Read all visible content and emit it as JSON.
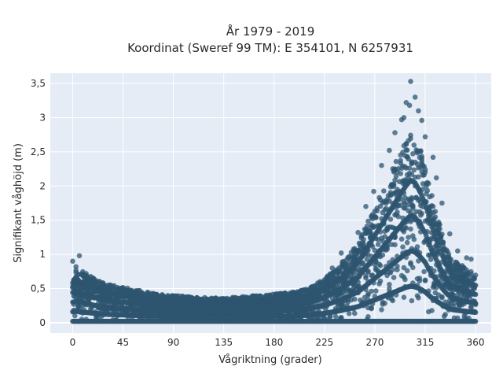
{
  "chart_data": {
    "type": "scatter",
    "title_line1": "År 1979 - 2019",
    "title_line2": "Koordinat (Sweref 99 TM): E 354101, N 6257931",
    "xlabel": "Vågriktning (grader)",
    "ylabel": "Signifikant våghöjd (m)",
    "xlim": [
      -20,
      374
    ],
    "ylim": [
      -0.15,
      3.65
    ],
    "x_ticks": [
      0,
      45,
      90,
      135,
      180,
      225,
      270,
      315,
      360
    ],
    "x_tick_labels": [
      "0",
      "45",
      "90",
      "135",
      "180",
      "225",
      "270",
      "315",
      "360"
    ],
    "y_ticks": [
      0,
      0.5,
      1,
      1.5,
      2,
      2.5,
      3,
      3.5
    ],
    "y_tick_labels": [
      "0",
      "0,5",
      "1",
      "1,5",
      "2",
      "2,5",
      "3",
      "3,5"
    ],
    "grid": true,
    "colors": {
      "marker": "#2e5570",
      "plot_bg": "#e5ecf6",
      "grid": "#ffffff"
    },
    "envelope": {
      "direction": [
        0,
        5,
        10,
        20,
        30,
        45,
        60,
        75,
        90,
        105,
        120,
        135,
        150,
        165,
        180,
        195,
        210,
        225,
        240,
        255,
        265,
        275,
        285,
        292,
        298,
        302,
        306,
        310,
        315,
        320,
        325,
        330,
        335,
        340,
        345,
        350,
        355,
        360
      ],
      "max_height": [
        0.75,
        0.78,
        0.72,
        0.62,
        0.55,
        0.5,
        0.45,
        0.4,
        0.38,
        0.36,
        0.35,
        0.34,
        0.36,
        0.38,
        0.4,
        0.42,
        0.48,
        0.62,
        0.85,
        1.15,
        1.5,
        1.85,
        2.2,
        2.45,
        2.65,
        2.75,
        2.7,
        2.55,
        2.3,
        1.9,
        1.6,
        1.3,
        1.05,
        0.9,
        0.85,
        0.8,
        0.75,
        0.7
      ]
    },
    "outliers": [
      {
        "x": 0,
        "y": 0.9
      },
      {
        "x": 6,
        "y": 0.98
      },
      {
        "x": 3,
        "y": 0.82
      },
      {
        "x": 302,
        "y": 3.53
      },
      {
        "x": 306,
        "y": 3.3
      },
      {
        "x": 298,
        "y": 3.22
      },
      {
        "x": 301,
        "y": 3.18
      },
      {
        "x": 309,
        "y": 3.1
      },
      {
        "x": 294,
        "y": 2.97
      },
      {
        "x": 296,
        "y": 3.0
      },
      {
        "x": 312,
        "y": 2.96
      },
      {
        "x": 288,
        "y": 2.78
      },
      {
        "x": 315,
        "y": 2.72
      },
      {
        "x": 283,
        "y": 2.52
      },
      {
        "x": 322,
        "y": 2.42
      },
      {
        "x": 276,
        "y": 2.3
      },
      {
        "x": 269,
        "y": 1.92
      },
      {
        "x": 325,
        "y": 2.12
      },
      {
        "x": 262,
        "y": 1.7
      },
      {
        "x": 255,
        "y": 1.32
      },
      {
        "x": 330,
        "y": 1.75
      },
      {
        "x": 337,
        "y": 1.3
      },
      {
        "x": 240,
        "y": 1.02
      },
      {
        "x": 344,
        "y": 1.05
      },
      {
        "x": 352,
        "y": 0.95
      },
      {
        "x": 356,
        "y": 0.93
      },
      {
        "x": 232,
        "y": 0.8
      }
    ]
  }
}
